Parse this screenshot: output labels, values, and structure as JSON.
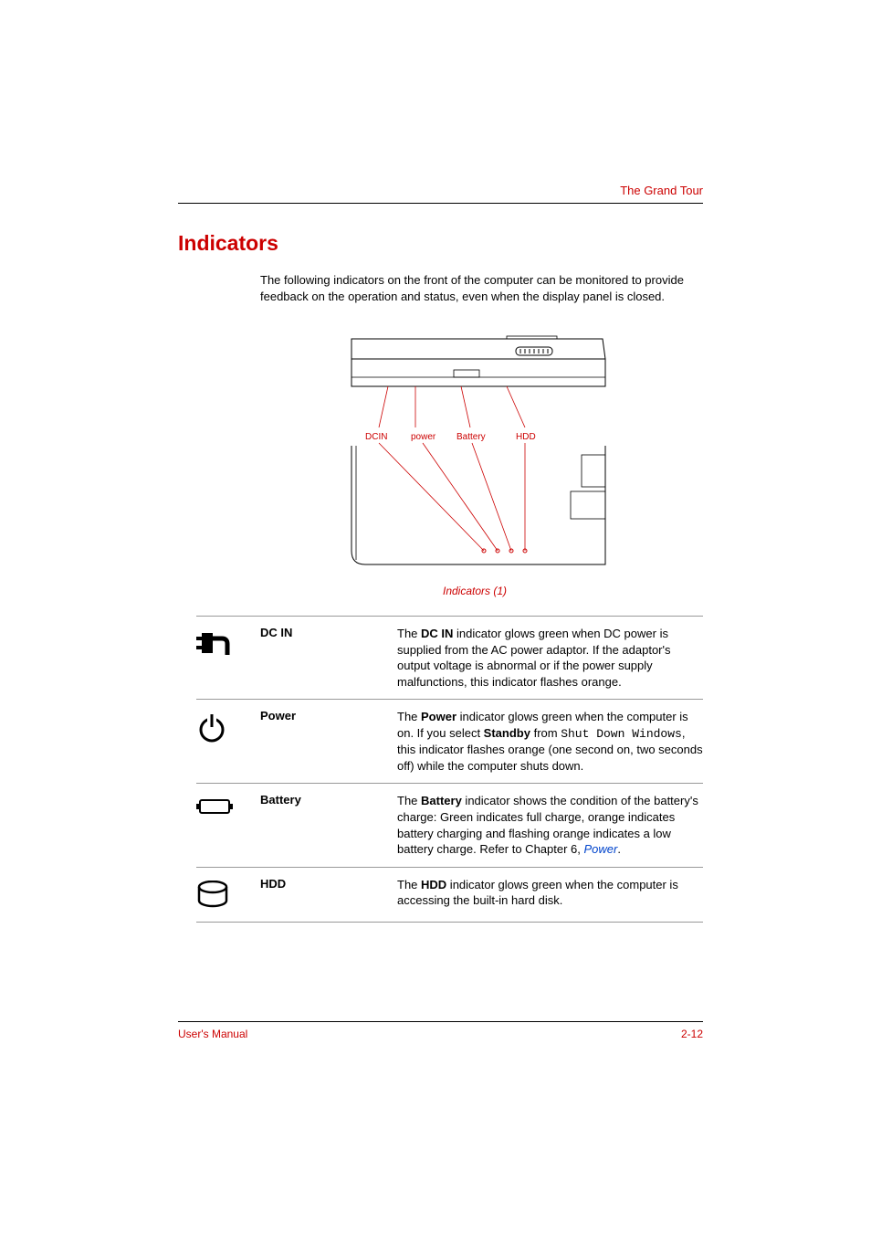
{
  "header": {
    "chapter_title": "The Grand Tour"
  },
  "section": {
    "heading": "Indicators",
    "intro": "The following indicators on the front of the computer can be monitored to provide feedback on the operation and status, even when the display panel is closed."
  },
  "diagram": {
    "caption": "Indicators (1)",
    "labels": {
      "dcin": "DCIN",
      "power": "power",
      "battery": "Battery",
      "hdd": "HDD"
    },
    "colors": {
      "label": "#cc0000",
      "line": "#cc0000",
      "outline": "#000000"
    }
  },
  "indicators": [
    {
      "icon": "plug",
      "label": "DC IN",
      "desc_html": "The <b>DC IN</b> indicator glows green when DC power is supplied from the AC power adaptor. If the adaptor's output voltage is abnormal or if the power supply malfunctions, this indicator flashes orange."
    },
    {
      "icon": "power",
      "label": "Power",
      "desc_html": "The <b>Power</b> indicator glows green when the computer is on. If you select <b>Standby</b> from <span class=\"mono\">Shut Down Windows</span>, this indicator flashes orange (one second on, two seconds off) while the computer shuts down."
    },
    {
      "icon": "battery",
      "label": "Battery",
      "desc_html": "The <b>Battery</b> indicator shows the condition of the battery's charge: Green indicates full charge, orange indicates battery charging and flashing orange indicates a low battery charge. Refer to Chapter 6, <span class=\"link\">Power</span>."
    },
    {
      "icon": "hdd",
      "label": "HDD",
      "desc_html": "The <b>HDD</b> indicator glows green when the computer is accessing the built-in hard disk."
    }
  ],
  "footer": {
    "left": "User's Manual",
    "right": "2-12"
  },
  "colors": {
    "accent": "#cc0000",
    "link": "#0044cc",
    "text": "#000000",
    "rule": "#999999"
  }
}
